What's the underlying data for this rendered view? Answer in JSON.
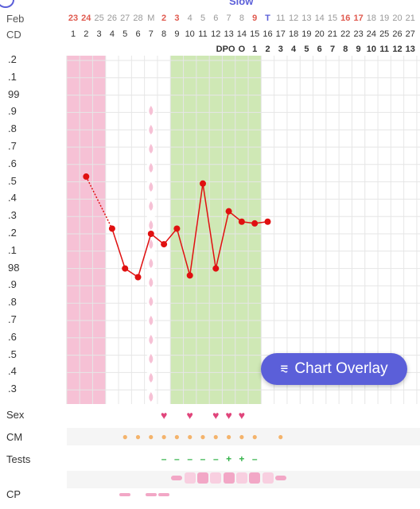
{
  "header": {
    "month_label": "Feb",
    "cd_label": "CD",
    "dpo_label": "DPO",
    "dates": [
      {
        "text": "23",
        "color": "#e05a4f"
      },
      {
        "text": "24",
        "color": "#e05a4f"
      },
      {
        "text": "25",
        "color": "#999999"
      },
      {
        "text": "26",
        "color": "#999999"
      },
      {
        "text": "27",
        "color": "#999999"
      },
      {
        "text": "28",
        "color": "#999999"
      },
      {
        "text": "M",
        "color": "#999999"
      },
      {
        "text": "2",
        "color": "#e05a4f"
      },
      {
        "text": "3",
        "color": "#e05a4f"
      },
      {
        "text": "4",
        "color": "#999999"
      },
      {
        "text": "5",
        "color": "#999999"
      },
      {
        "text": "6",
        "color": "#999999"
      },
      {
        "text": "7",
        "color": "#999999"
      },
      {
        "text": "8",
        "color": "#999999"
      },
      {
        "text": "9",
        "color": "#e05a4f"
      },
      {
        "text": "T",
        "color": "#5b5fd9"
      },
      {
        "text": "11",
        "color": "#999999"
      },
      {
        "text": "12",
        "color": "#999999"
      },
      {
        "text": "13",
        "color": "#999999"
      },
      {
        "text": "14",
        "color": "#999999"
      },
      {
        "text": "15",
        "color": "#999999"
      },
      {
        "text": "16",
        "color": "#e05a4f"
      },
      {
        "text": "17",
        "color": "#e05a4f"
      },
      {
        "text": "18",
        "color": "#999999"
      },
      {
        "text": "19",
        "color": "#999999"
      },
      {
        "text": "20",
        "color": "#999999"
      },
      {
        "text": "21",
        "color": "#999999"
      }
    ],
    "cycle_days": [
      "1",
      "2",
      "3",
      "4",
      "5",
      "6",
      "7",
      "8",
      "9",
      "10",
      "11",
      "12",
      "13",
      "14",
      "15",
      "16",
      "17",
      "18",
      "19",
      "20",
      "21",
      "22",
      "23",
      "24",
      "25",
      "26",
      "27"
    ],
    "dpo_values": [
      "O",
      "1",
      "2",
      "3",
      "4",
      "5",
      "6",
      "7",
      "8",
      "9",
      "10",
      "11",
      "12",
      "13"
    ]
  },
  "y_axis_labels": [
    ".2",
    ".1",
    "99",
    ".9",
    ".8",
    ".7",
    ".6",
    ".5",
    ".4",
    ".3",
    ".2",
    ".1",
    "98",
    ".9",
    ".8",
    ".7",
    ".6",
    ".5",
    ".4",
    ".3"
  ],
  "chart_data": {
    "type": "line",
    "x_label": "CD",
    "y_range": [
      97.25,
      99.2
    ],
    "cycle_days": [
      2,
      4,
      5,
      6,
      7,
      8,
      9,
      10,
      11,
      12,
      13,
      14,
      15,
      16
    ],
    "temperatures": [
      98.53,
      98.23,
      98.0,
      97.95,
      98.2,
      98.14,
      98.23,
      97.96,
      98.49,
      98.0,
      98.33,
      98.27,
      98.26,
      98.27
    ],
    "dotted_segment": [
      2,
      4
    ],
    "period_days": [
      1,
      2,
      3
    ],
    "fertile_window_days": [
      9,
      10,
      11,
      12,
      13,
      14,
      15
    ],
    "colors": {
      "line": "#e01010",
      "period": "#f6c1d5",
      "fertile": "#cfe8b5"
    }
  },
  "overlay_button": {
    "label": "Chart Overlay",
    "icon": "chart-overlay-icon"
  },
  "rows": {
    "sex": {
      "label": "Sex",
      "days": [
        8,
        10,
        12,
        13,
        14
      ]
    },
    "cm": {
      "label": "CM",
      "days": [
        5,
        6,
        7,
        8,
        9,
        10,
        11,
        12,
        13,
        14,
        15,
        17
      ]
    },
    "tests": {
      "label": "Tests",
      "neg_symbol": "–",
      "pos_symbol": "+",
      "results": [
        {
          "day": 8,
          "r": "–"
        },
        {
          "day": 9,
          "r": "–"
        },
        {
          "day": 10,
          "r": "–"
        },
        {
          "day": 11,
          "r": "–"
        },
        {
          "day": 12,
          "r": "–"
        },
        {
          "day": 13,
          "r": "+"
        },
        {
          "day": 14,
          "r": "+"
        },
        {
          "day": 15,
          "r": "–"
        }
      ]
    },
    "cp": {
      "label": "CP"
    }
  }
}
